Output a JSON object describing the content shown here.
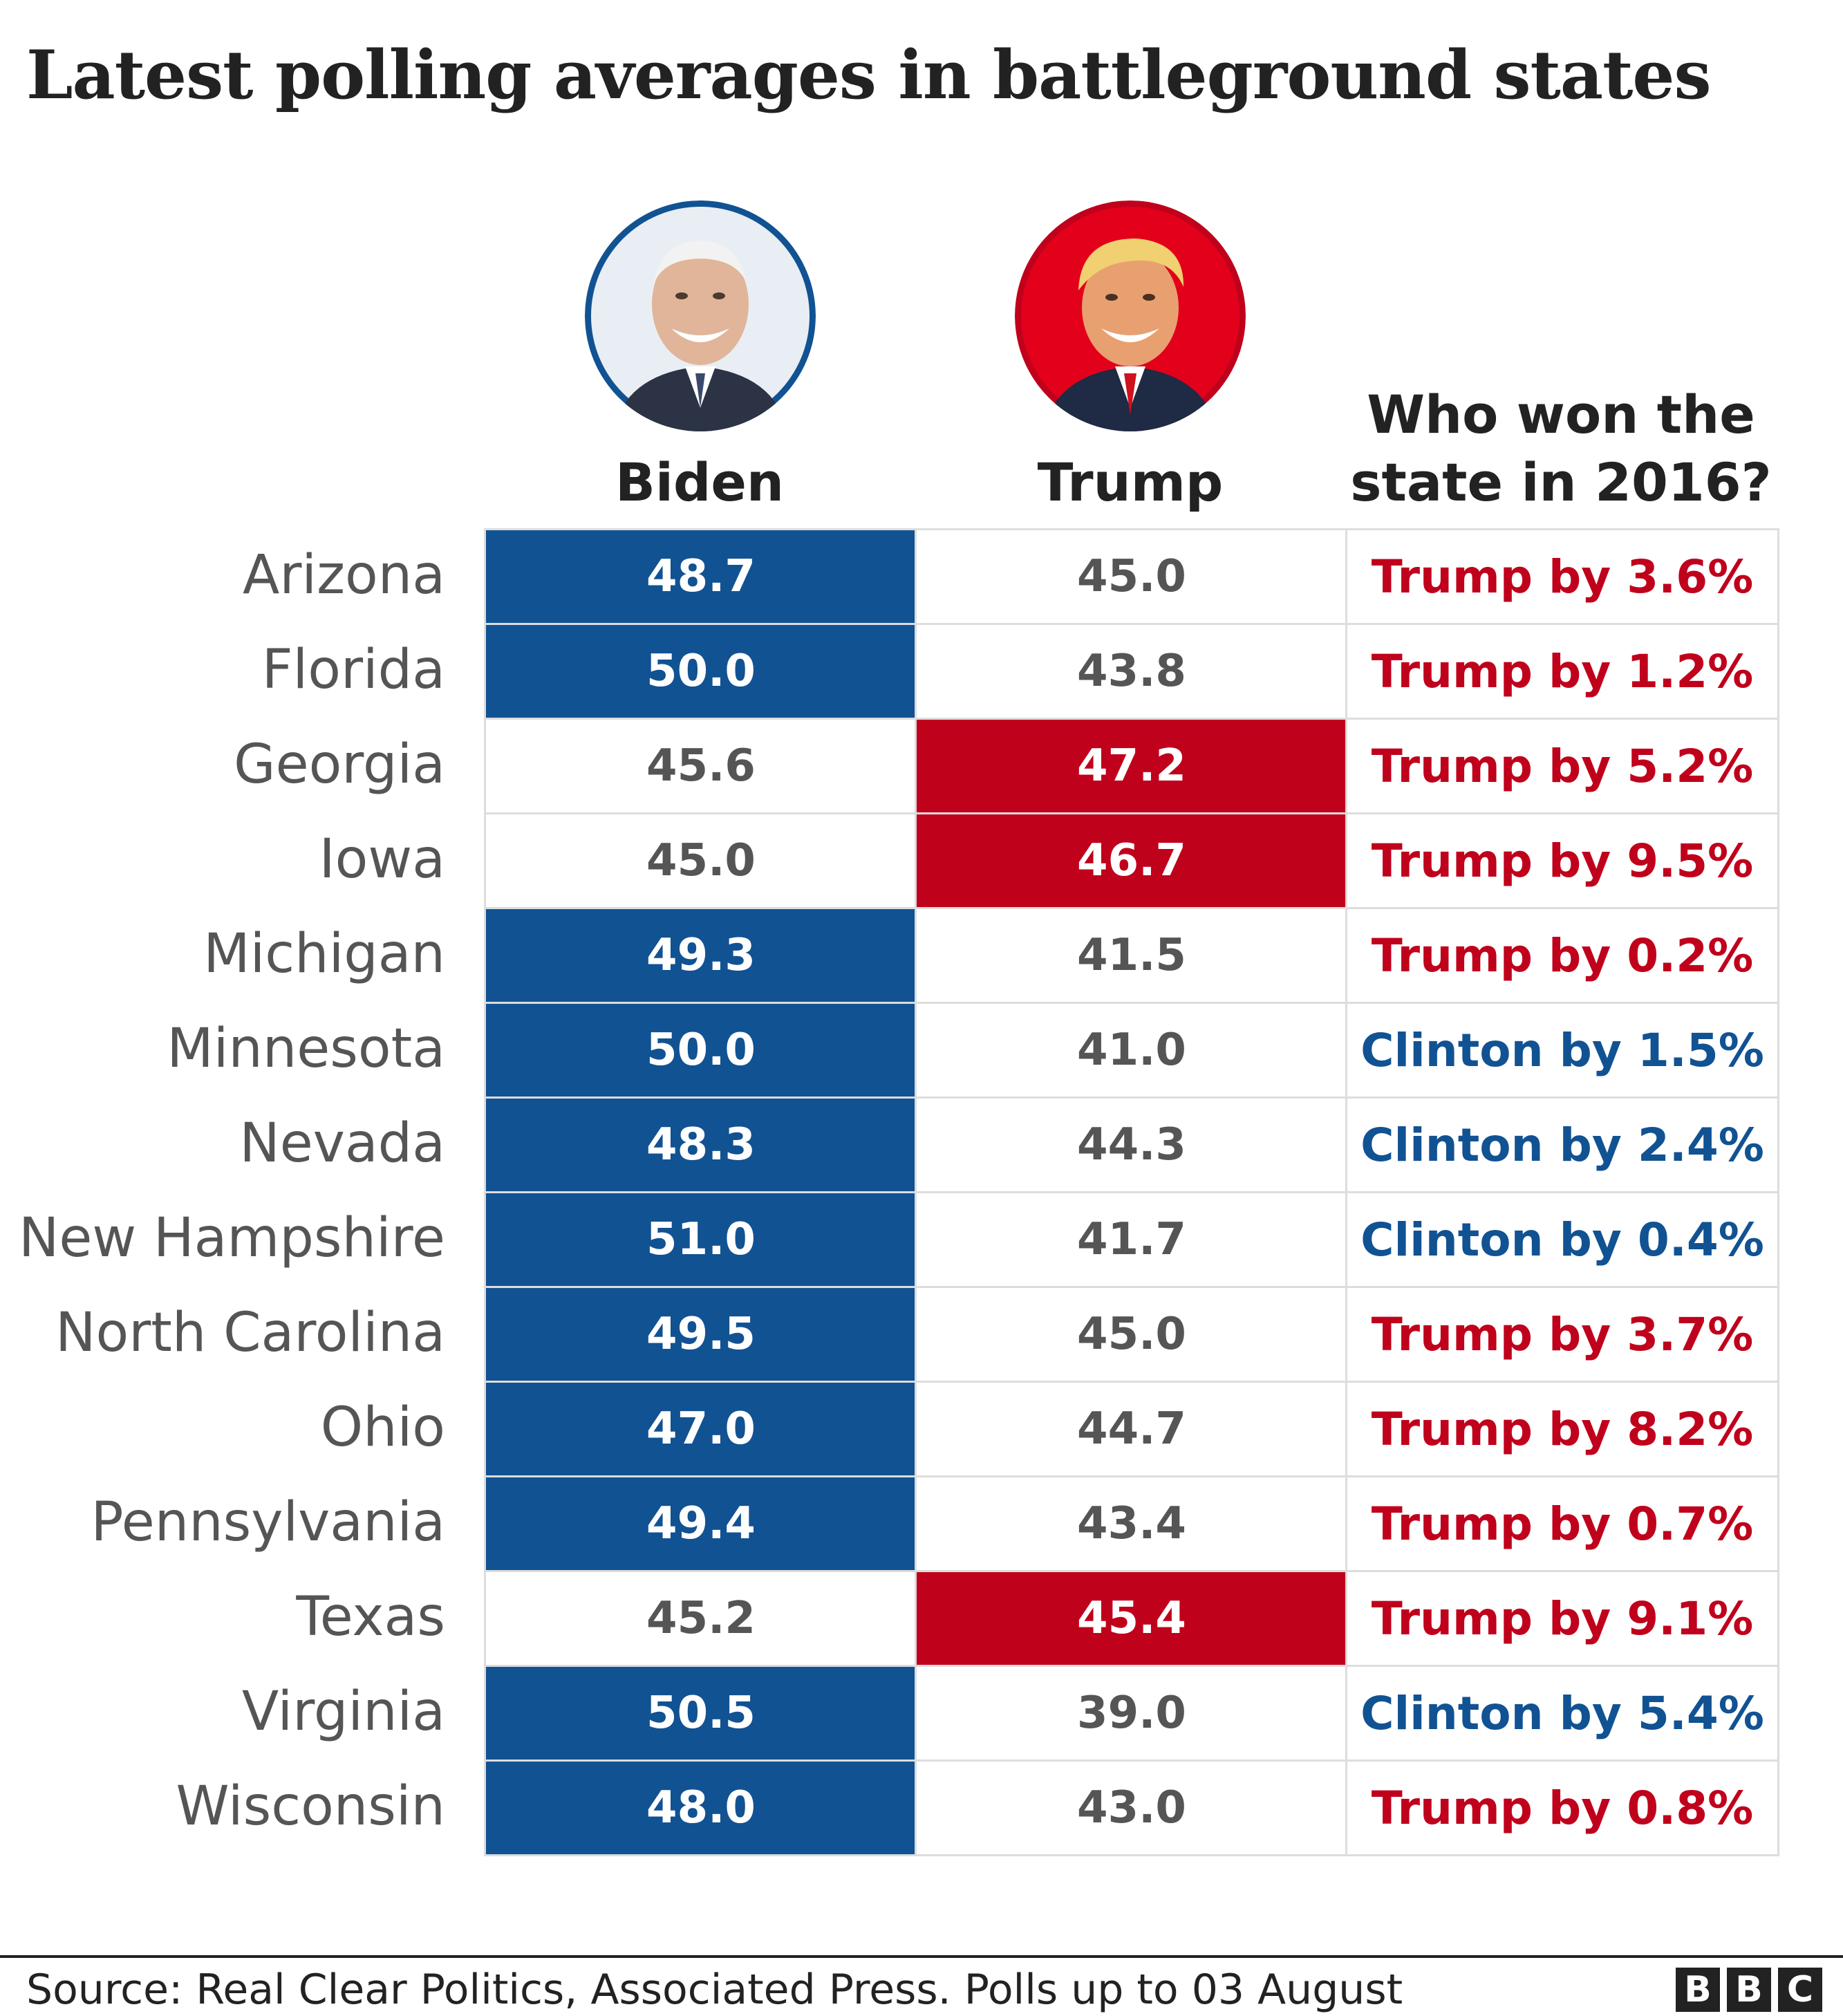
{
  "title": "Latest polling averages in battleground states",
  "columns": {
    "biden": "Biden",
    "trump": "Trump",
    "won_line1": "Who won the",
    "won_line2": "state in 2016?"
  },
  "colors": {
    "biden": "#115293",
    "trump": "#c0011c",
    "gray_text": "#555555",
    "grid": "#dddddd"
  },
  "portraits": {
    "biden": "biden-portrait",
    "trump": "trump-portrait"
  },
  "chart_data": {
    "type": "table",
    "title": "Latest polling averages in battleground states",
    "columns": [
      "Biden",
      "Trump",
      "Who won the state in 2016?"
    ],
    "rows": [
      {
        "state": "Arizona",
        "biden": "48.7",
        "trump": "45.0",
        "won": "Trump by 3.6%",
        "won_by": "Trump"
      },
      {
        "state": "Florida",
        "biden": "50.0",
        "trump": "43.8",
        "won": "Trump by 1.2%",
        "won_by": "Trump"
      },
      {
        "state": "Georgia",
        "biden": "45.6",
        "trump": "47.2",
        "won": "Trump by 5.2%",
        "won_by": "Trump"
      },
      {
        "state": "Iowa",
        "biden": "45.0",
        "trump": "46.7",
        "won": "Trump by 9.5%",
        "won_by": "Trump"
      },
      {
        "state": "Michigan",
        "biden": "49.3",
        "trump": "41.5",
        "won": "Trump by 0.2%",
        "won_by": "Trump"
      },
      {
        "state": "Minnesota",
        "biden": "50.0",
        "trump": "41.0",
        "won": "Clinton by 1.5%",
        "won_by": "Clinton"
      },
      {
        "state": "Nevada",
        "biden": "48.3",
        "trump": "44.3",
        "won": "Clinton by 2.4%",
        "won_by": "Clinton"
      },
      {
        "state": "New Hampshire",
        "biden": "51.0",
        "trump": "41.7",
        "won": "Clinton by 0.4%",
        "won_by": "Clinton"
      },
      {
        "state": "North Carolina",
        "biden": "49.5",
        "trump": "45.0",
        "won": "Trump by 3.7%",
        "won_by": "Trump"
      },
      {
        "state": "Ohio",
        "biden": "47.0",
        "trump": "44.7",
        "won": "Trump by 8.2%",
        "won_by": "Trump"
      },
      {
        "state": "Pennsylvania",
        "biden": "49.4",
        "trump": "43.4",
        "won": "Trump by 0.7%",
        "won_by": "Trump"
      },
      {
        "state": "Texas",
        "biden": "45.2",
        "trump": "45.4",
        "won": "Trump by 9.1%",
        "won_by": "Trump"
      },
      {
        "state": "Virginia",
        "biden": "50.5",
        "trump": "39.0",
        "won": "Clinton by 5.4%",
        "won_by": "Clinton"
      },
      {
        "state": "Wisconsin",
        "biden": "48.0",
        "trump": "43.0",
        "won": "Trump by 0.8%",
        "won_by": "Trump"
      }
    ]
  },
  "footer": {
    "source": "Source: Real Clear Politics, Associated Press. Polls up to 03 August",
    "logo": [
      "B",
      "B",
      "C"
    ]
  }
}
